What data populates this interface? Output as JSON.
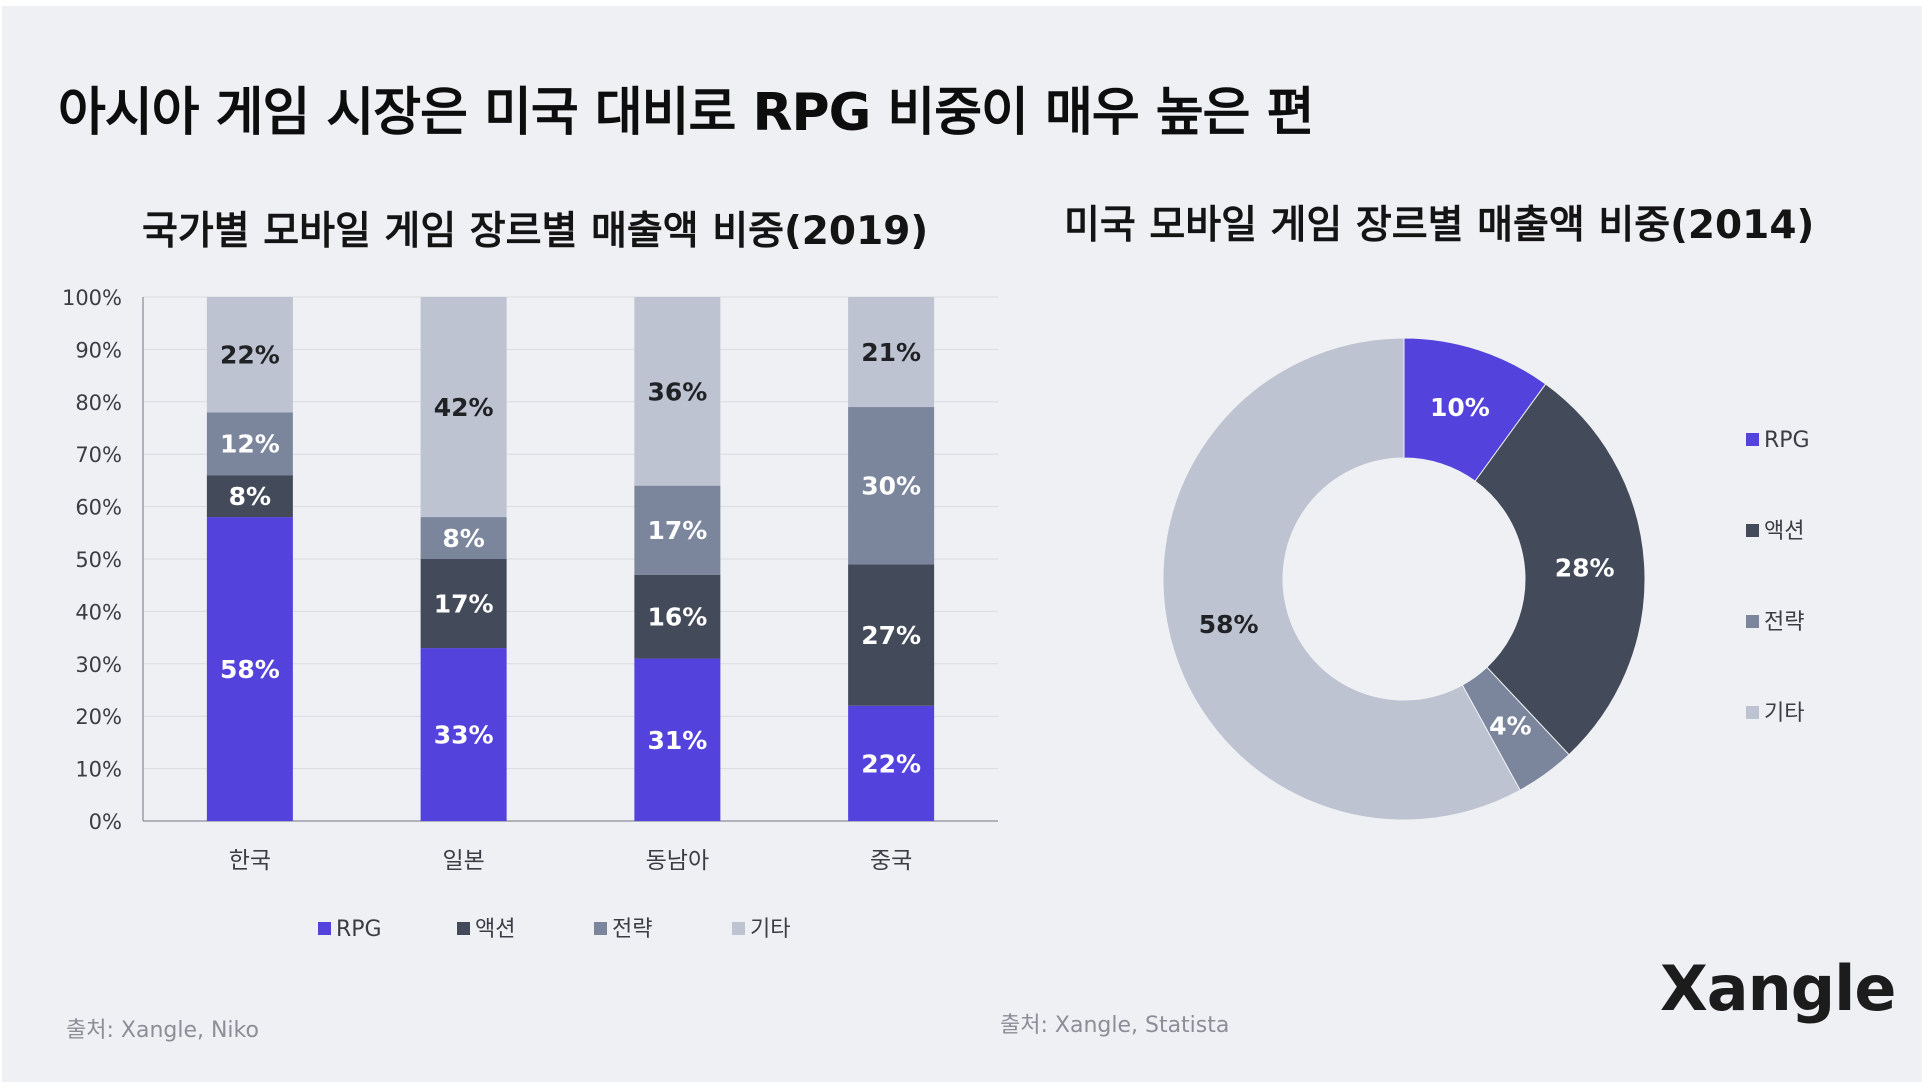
{
  "headline": "아시아 게임 시장은 미국 대비로 RPG 비중이 매우 높은 편",
  "brand": "Xangle",
  "colors": {
    "RPG": "#5442dc",
    "액션": "#434a5a",
    "전략": "#7b869d",
    "기타": "#bdc3d0",
    "background": "#eff0f4"
  },
  "chart_data": [
    {
      "type": "bar",
      "stacked": true,
      "title": "국가별 모바일 게임 장르별 매출액 비중(2019)",
      "categories": [
        "한국",
        "일본",
        "동남아",
        "중국"
      ],
      "series": [
        {
          "name": "RPG",
          "values": [
            58,
            33,
            31,
            22
          ]
        },
        {
          "name": "액션",
          "values": [
            8,
            17,
            16,
            27
          ]
        },
        {
          "name": "전략",
          "values": [
            12,
            8,
            17,
            30
          ]
        },
        {
          "name": "기타",
          "values": [
            22,
            42,
            36,
            21
          ]
        }
      ],
      "ylim": [
        0,
        100
      ],
      "yticks": [
        "0%",
        "10%",
        "20%",
        "30%",
        "40%",
        "50%",
        "60%",
        "70%",
        "80%",
        "90%",
        "100%"
      ],
      "grid": true,
      "legend": "bottom",
      "source": "출처: Xangle, Niko"
    },
    {
      "type": "pie",
      "donut": true,
      "title": "미국 모바일 게임 장르별 매출액 비중(2014)",
      "labels": [
        "RPG",
        "액션",
        "전략",
        "기타"
      ],
      "values": [
        10,
        28,
        4,
        58
      ],
      "legend": "right",
      "source": "출처: Xangle, Statista"
    }
  ]
}
